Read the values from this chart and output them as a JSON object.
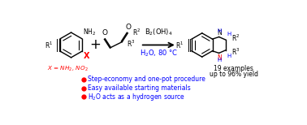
{
  "bg_color": "#ffffff",
  "black": "#000000",
  "red": "#ff0000",
  "blue": "#0000ff",
  "bullet_color": "#ff0000",
  "bullet1": "Step-economy and one-pot procedure",
  "bullet2": "Easy available starting materials",
  "bullet3": "H$_2$O acts as a hydrogen source",
  "reagent_line1": "B$_2$(OH)$_4$",
  "reagent_line2": "H$_2$O, 80 °C",
  "examples_line1": "19 examples",
  "examples_line2": "up to 96% yield",
  "x_label": "X = NH$_2$, NO$_2$"
}
